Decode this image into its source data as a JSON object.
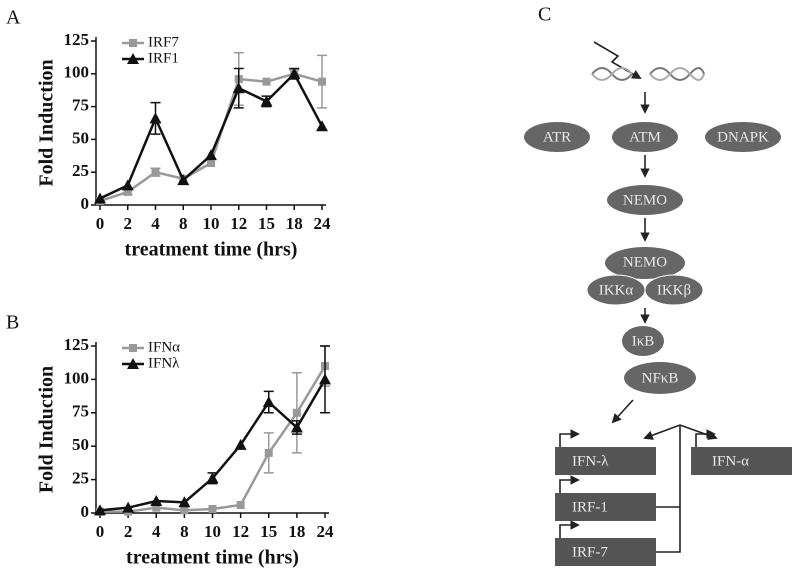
{
  "chart_data": [
    {
      "type": "line",
      "panel": "A",
      "ylabel": "Fold Induction",
      "xlabel": "treatment time (hrs)",
      "categories": [
        "0",
        "2",
        "4",
        "8",
        "10",
        "12",
        "15",
        "18",
        "24"
      ],
      "ylim": [
        0,
        125
      ],
      "yticks": [
        0,
        25,
        50,
        75,
        100,
        125
      ],
      "legend": "upper left",
      "series": [
        {
          "name": "IRF7",
          "color": "#999999",
          "marker": "square",
          "values": [
            3,
            10,
            25,
            20,
            32,
            96,
            94,
            100,
            94
          ],
          "errors": [
            null,
            2,
            3,
            null,
            null,
            20,
            null,
            3,
            20
          ]
        },
        {
          "name": "IRF1",
          "color": "#111111",
          "marker": "triangle",
          "values": [
            5,
            15,
            66,
            19,
            38,
            89,
            79,
            100,
            60
          ],
          "errors": [
            null,
            null,
            12,
            null,
            null,
            15,
            4,
            4,
            null
          ]
        }
      ]
    },
    {
      "type": "line",
      "panel": "B",
      "ylabel": "Fold Induction",
      "xlabel": "treatment time (hrs)",
      "categories": [
        "0",
        "2",
        "4",
        "8",
        "10",
        "12",
        "15",
        "18",
        "24"
      ],
      "ylim": [
        0,
        125
      ],
      "yticks": [
        0,
        25,
        50,
        75,
        100,
        125
      ],
      "legend": "upper left",
      "series": [
        {
          "name": "IFNα",
          "color": "#999999",
          "marker": "square",
          "values": [
            1,
            1,
            4,
            2,
            3,
            6,
            45,
            75,
            110
          ],
          "errors": [
            null,
            null,
            null,
            null,
            null,
            null,
            15,
            30,
            15
          ]
        },
        {
          "name": "IFNλ",
          "color": "#111111",
          "marker": "triangle",
          "values": [
            2,
            4,
            9,
            8,
            26,
            51,
            83,
            64,
            100
          ],
          "errors": [
            null,
            null,
            null,
            null,
            4,
            null,
            8,
            5,
            25
          ]
        }
      ]
    }
  ],
  "diagram": {
    "panel": "C",
    "nodes": [
      {
        "label": "ATR"
      },
      {
        "label": "ATM"
      },
      {
        "label": "DNAPK"
      },
      {
        "label": "NEMO"
      },
      {
        "label": "NEMO"
      },
      {
        "label": "IKKα"
      },
      {
        "label": "IKKβ"
      },
      {
        "label": "IκB"
      },
      {
        "label": "NFκB"
      }
    ],
    "genes": [
      {
        "label": "IFN-λ"
      },
      {
        "label": "IFN-α"
      },
      {
        "label": "IRF-1"
      },
      {
        "label": "IRF-7"
      }
    ]
  }
}
